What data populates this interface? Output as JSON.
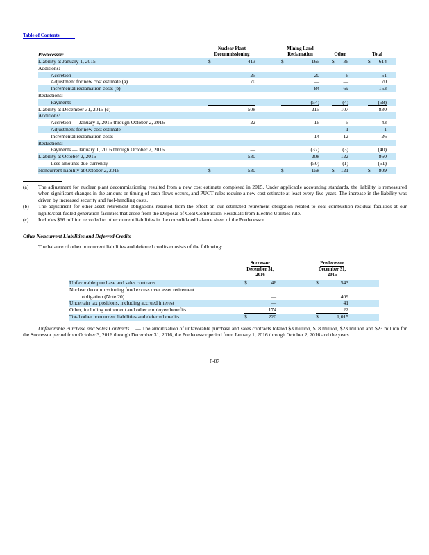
{
  "page": {
    "toc_link": "Table of Contents",
    "page_number": "F-87"
  },
  "table1": {
    "predecessor_label": "Predecessor:",
    "cols": [
      {
        "l1": "Nuclear Plant",
        "l2": "Decommissioning"
      },
      {
        "l1": "",
        "l2": "Mining Land",
        "l3": "Reclamation"
      },
      {
        "l1": "",
        "l2": "Other"
      },
      {
        "l1": "",
        "l2": "Total"
      }
    ],
    "rows": [
      {
        "label": "Liability at January 1, 2015",
        "ind": 0,
        "v": [
          "413",
          "165",
          "36",
          "614"
        ],
        "d": true,
        "hl": true,
        "ul": false
      },
      {
        "label": "Additions:",
        "ind": 0,
        "v": [
          "",
          "",
          "",
          ""
        ],
        "d": false,
        "hl": false,
        "ul": false
      },
      {
        "label": "Accretion",
        "ind": 1,
        "v": [
          "25",
          "20",
          "6",
          "51"
        ],
        "d": false,
        "hl": true,
        "ul": false
      },
      {
        "label": "Adjustment for new cost estimate (a)",
        "ind": 1,
        "v": [
          "70",
          "—",
          "—",
          "70"
        ],
        "d": false,
        "hl": false,
        "ul": false
      },
      {
        "label": "Incremental reclamation costs (b)",
        "ind": 1,
        "v": [
          "—",
          "84",
          "69",
          "153"
        ],
        "d": false,
        "hl": true,
        "ul": false
      },
      {
        "label": "Reductions:",
        "ind": 0,
        "v": [
          "",
          "",
          "",
          ""
        ],
        "d": false,
        "hl": false,
        "ul": false
      },
      {
        "label": "Payments",
        "ind": 1,
        "v": [
          "—",
          "(54)",
          "(4)",
          "(58)"
        ],
        "d": false,
        "hl": true,
        "ul": true
      },
      {
        "label": "Liability at December 31, 2015 (c)",
        "ind": 0,
        "v": [
          "508",
          "215",
          "107",
          "830"
        ],
        "d": false,
        "hl": false,
        "ul": false
      },
      {
        "label": "Additions:",
        "ind": 0,
        "v": [
          "",
          "",
          "",
          ""
        ],
        "d": false,
        "hl": true,
        "ul": false
      },
      {
        "label": "Accretion — January 1, 2016 through October 2, 2016",
        "ind": 1,
        "v": [
          "22",
          "16",
          "5",
          "43"
        ],
        "d": false,
        "hl": false,
        "ul": false
      },
      {
        "label": "Adjustment for new cost estimate",
        "ind": 1,
        "v": [
          "—",
          "—",
          "1",
          "1"
        ],
        "d": false,
        "hl": true,
        "ul": false
      },
      {
        "label": "Incremental reclamation costs",
        "ind": 1,
        "v": [
          "—",
          "14",
          "12",
          "26"
        ],
        "d": false,
        "hl": false,
        "ul": false
      },
      {
        "label": "Reductions:",
        "ind": 0,
        "v": [
          "",
          "",
          "",
          ""
        ],
        "d": false,
        "hl": true,
        "ul": false
      },
      {
        "label": "Payments — January 1, 2016 through October 2, 2016",
        "ind": 1,
        "v": [
          "—",
          "(37)",
          "(3)",
          "(40)"
        ],
        "d": false,
        "hl": false,
        "ul": true
      },
      {
        "label": "Liability at October 2, 2016",
        "ind": 0,
        "v": [
          "530",
          "208",
          "122",
          "860"
        ],
        "d": false,
        "hl": true,
        "ul": false
      },
      {
        "label": "Less amounts due currently",
        "ind": 1,
        "v": [
          "—",
          "(50)",
          "(1)",
          "(51)"
        ],
        "d": false,
        "hl": false,
        "ul": true
      },
      {
        "label": "Noncurrent liability at October 2, 2016",
        "ind": 0,
        "v": [
          "530",
          "158",
          "121",
          "809"
        ],
        "d": true,
        "hl": true,
        "ul": false
      }
    ]
  },
  "footnotes": [
    {
      "marker": "(a)",
      "text": "The adjustment for nuclear plant decommissioning resulted from a new cost estimate completed in 2015. Under applicable accounting standards, the liability is remeasured when significant changes in the amount or timing of cash flows occurs, and PUCT rules require a new cost estimate at least every five years. The increase in the liability was driven by increased security and fuel-handling costs."
    },
    {
      "marker": "(b)",
      "text": "The adjustment for other asset retirement obligations resulted from the effect on our estimated retirement obligation related to coal combustion residual facilities at our lignite/coal fueled generation facilities that arose from the Disposal of Coal Combustion Residuals from Electric Utilities rule."
    },
    {
      "marker": "(c)",
      "text": "Includes $66 million recorded to other current liabilities in the consolidated balance sheet of the Predecessor."
    }
  ],
  "section": {
    "heading": "Other Noncurrent Liabilities and Deferred Credits",
    "intro": "The balance of other noncurrent liabilities and deferred credits consists of the following:"
  },
  "table2": {
    "col_groups": [
      {
        "era": "Successor",
        "date": "December 31,",
        "year": "2016"
      },
      {
        "era": "Predecessor",
        "date": "December 31,",
        "year": "2015"
      }
    ],
    "rows": [
      {
        "label": "Unfavorable purchase and sales contracts",
        "ind": 0,
        "v": [
          "46",
          "543"
        ],
        "d": true,
        "hl": true,
        "ul": false
      },
      {
        "label": "Nuclear decommissioning fund excess over asset retirement",
        "ind": 0,
        "v": [
          "",
          ""
        ],
        "d": false,
        "hl": false,
        "ul": false
      },
      {
        "label": "obligation (Note 20)",
        "ind": 1,
        "v": [
          "—",
          "409"
        ],
        "d": false,
        "hl": false,
        "ul": false
      },
      {
        "label": "Uncertain tax positions, including accrued interest",
        "ind": 0,
        "v": [
          "—",
          "41"
        ],
        "d": false,
        "hl": true,
        "ul": false
      },
      {
        "label": "Other, including retirement and other employee benefits",
        "ind": 0,
        "v": [
          "174",
          "22"
        ],
        "d": false,
        "hl": false,
        "ul": true
      },
      {
        "label": "Total other noncurrent liabilities and deferred credits",
        "ind": 0,
        "v": [
          "220",
          "1,015"
        ],
        "d": true,
        "hl": true,
        "ul": false
      }
    ]
  },
  "closing": {
    "lead": "Unfavorable Purchase and Sales Contracts",
    "rest": "— The amortization of unfavorable purchase and sales contracts totaled $3 million, $18 million, $23 million and $23 million for the Successor period from October 3, 2016 through December 31, 2016, the Predecessor period from January 1, 2016 through October 2, 2016 and the years"
  },
  "colors": {
    "highlight": "#c5e6f7",
    "link": "#0000cc"
  }
}
